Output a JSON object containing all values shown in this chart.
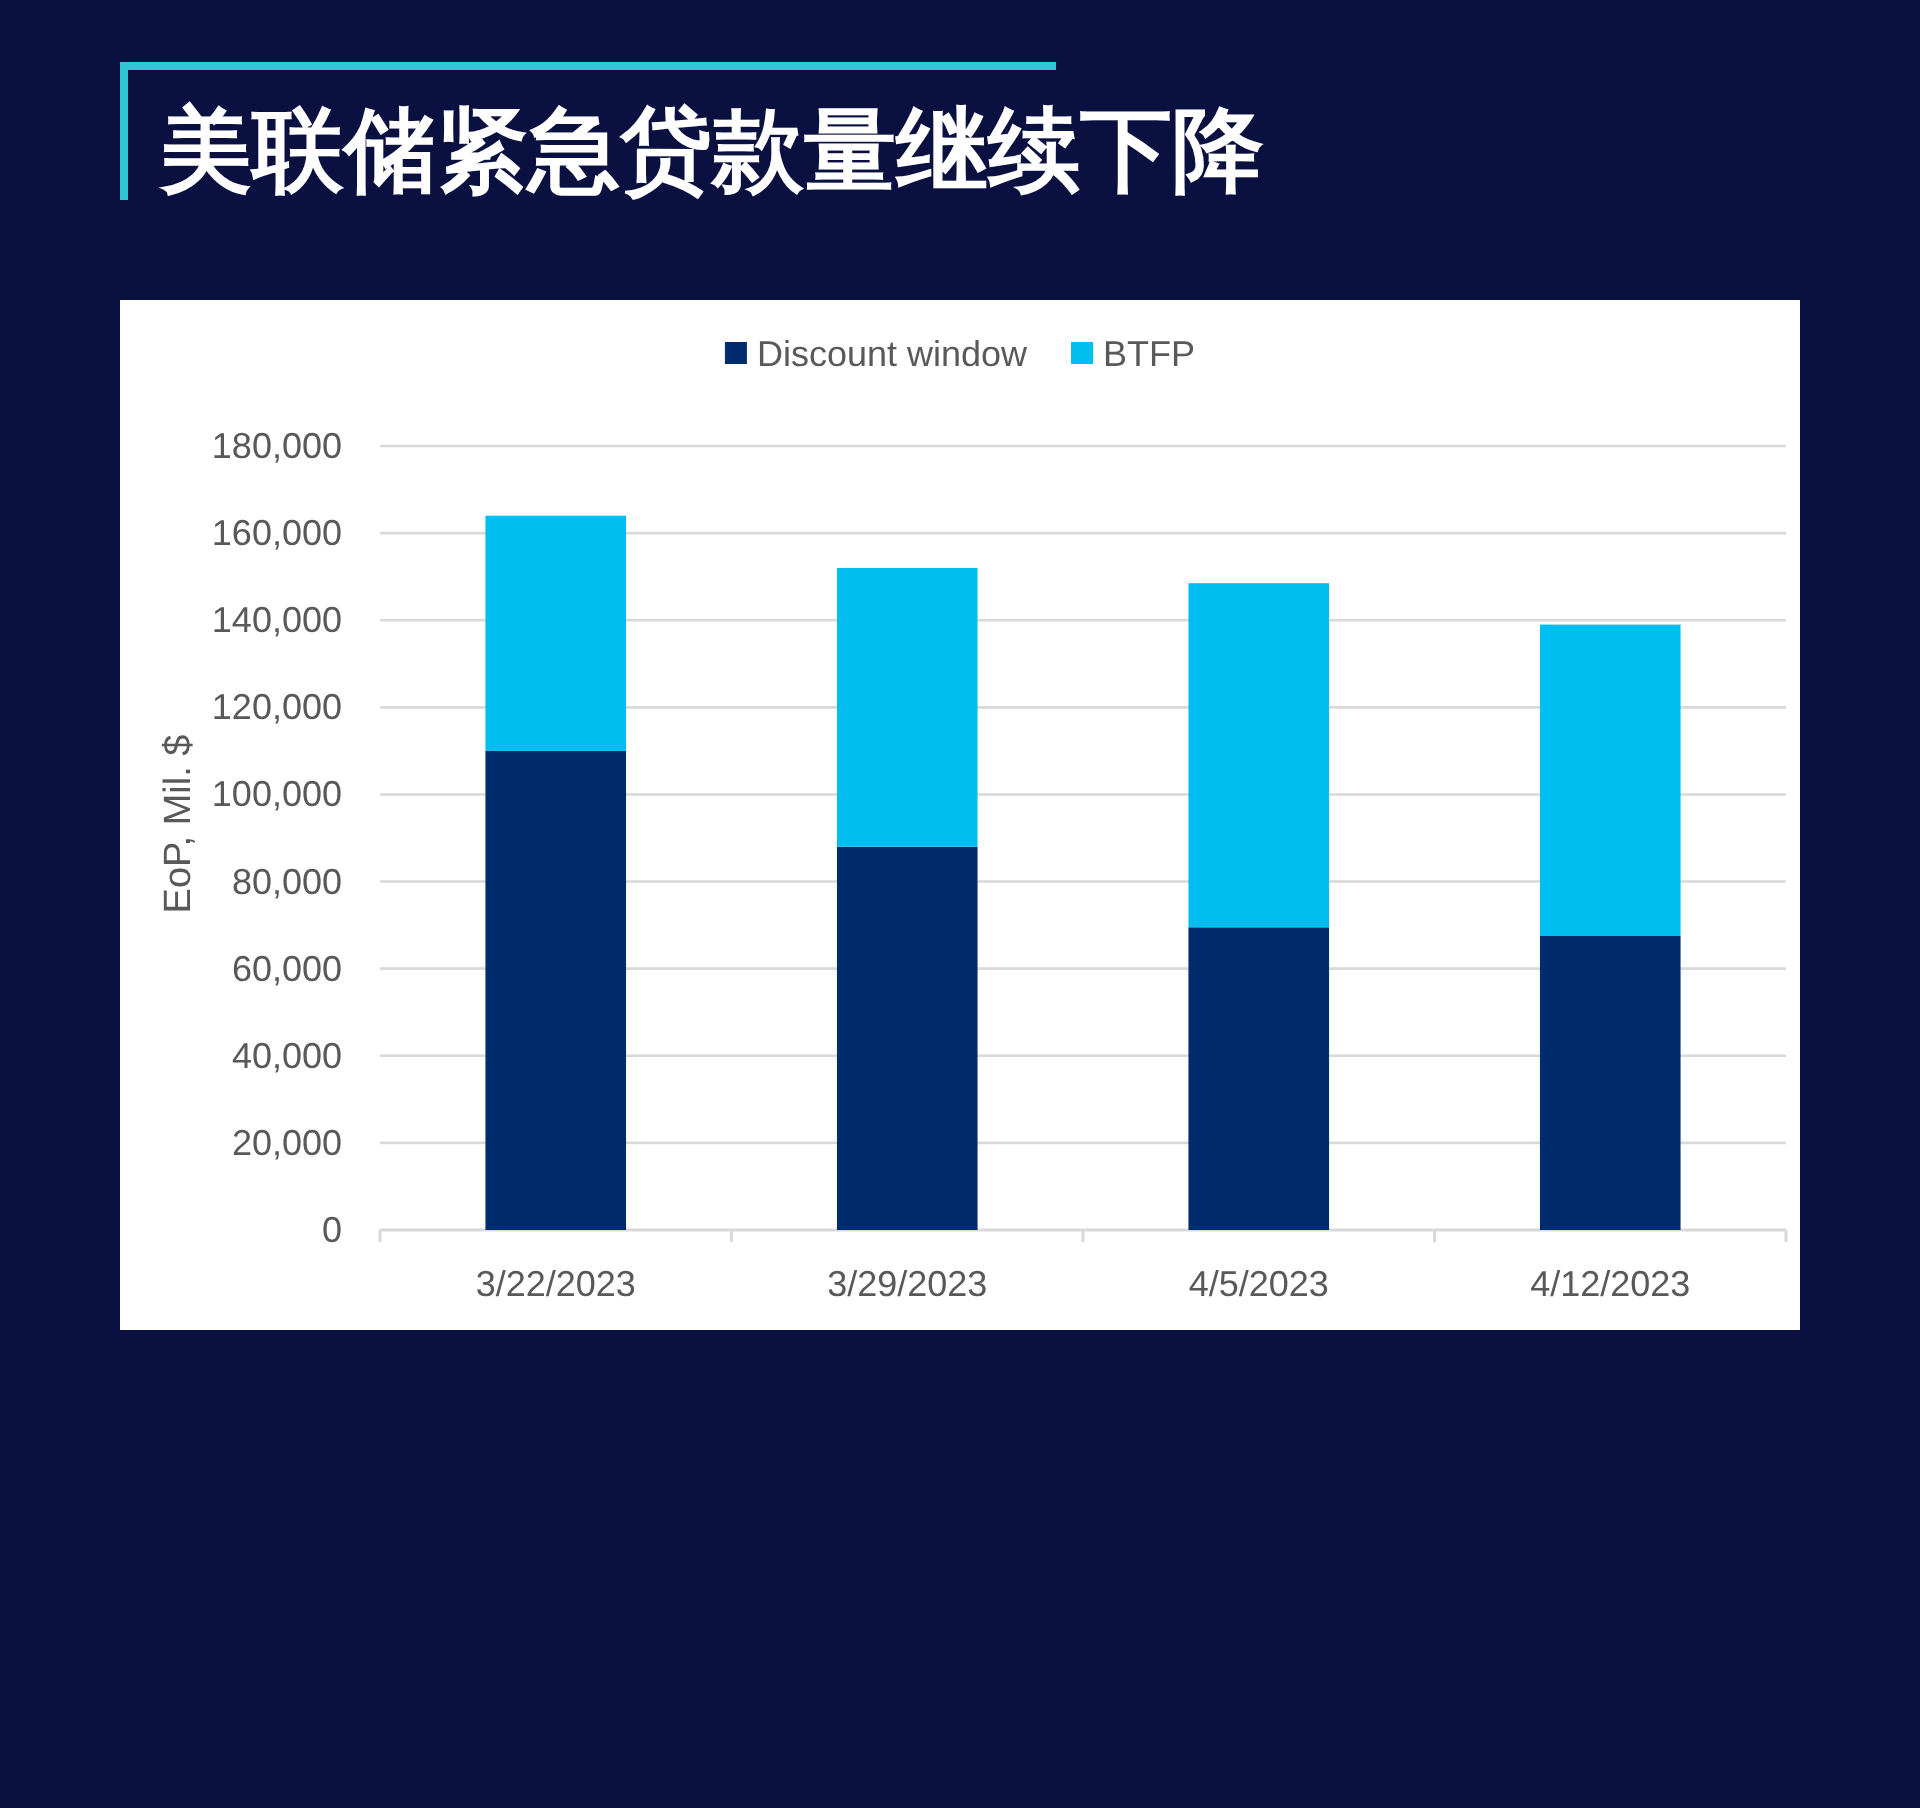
{
  "chart_data": {
    "type": "bar",
    "title": "美联储紧急贷款量继续下降",
    "ylabel": "EoP, Mil. $",
    "categories": [
      "3/22/2023",
      "3/29/2023",
      "4/5/2023",
      "4/12/2023"
    ],
    "series": [
      {
        "name": "Discount window",
        "color": "#002b6c",
        "values": [
          110000,
          88000,
          69500,
          67500
        ]
      },
      {
        "name": "BTFP",
        "color": "#00bef0",
        "values": [
          54000,
          64000,
          79000,
          71500
        ]
      }
    ],
    "stacked": true,
    "ylim": [
      0,
      180000
    ],
    "yticks": [
      0,
      {
        "value": 20000,
        "label": "20,000"
      },
      {
        "value": 40000,
        "label": "40,000"
      },
      {
        "value": 60000,
        "label": "60,000"
      },
      {
        "value": 80000,
        "label": "80,000"
      },
      {
        "value": 100000,
        "label": "100,000"
      },
      {
        "value": 120000,
        "label": "120,000"
      },
      {
        "value": 140000,
        "label": "140,000"
      },
      {
        "value": 160000,
        "label": "160,000"
      },
      {
        "value": 180000,
        "label": "180,000"
      }
    ],
    "grid": "y",
    "legend": "top"
  }
}
